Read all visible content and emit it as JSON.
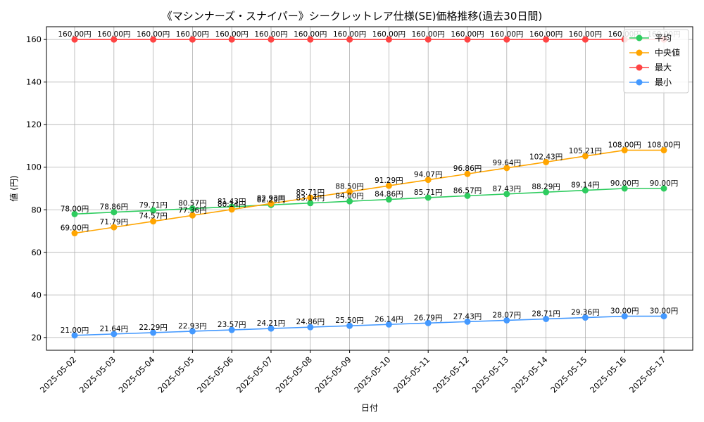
{
  "chart_data": {
    "type": "line",
    "title": "《マシンナーズ・スナイパー》シークレットレア仕様(SE)価格推移(過去30日間)",
    "xlabel": "日付",
    "ylabel": "値 (円)",
    "x": [
      "2025-05-02",
      "2025-05-03",
      "2025-05-04",
      "2025-05-05",
      "2025-05-06",
      "2025-05-07",
      "2025-05-08",
      "2025-05-09",
      "2025-05-10",
      "2025-05-11",
      "2025-05-12",
      "2025-05-13",
      "2025-05-14",
      "2025-05-15",
      "2025-05-16",
      "2025-05-17"
    ],
    "ylim": [
      14,
      166
    ],
    "yticks": [
      20,
      40,
      60,
      80,
      100,
      120,
      140,
      160
    ],
    "grid": true,
    "legend_position": "top-right",
    "value_suffix": "円",
    "series": [
      {
        "name": "平均",
        "color": "#2ecc5f",
        "values": [
          78.0,
          78.86,
          79.71,
          80.57,
          81.43,
          82.29,
          83.14,
          84.0,
          84.86,
          85.71,
          86.57,
          87.43,
          88.29,
          89.14,
          90.0,
          90.0
        ]
      },
      {
        "name": "中央値",
        "color": "#ffa500",
        "values": [
          69.0,
          71.79,
          74.57,
          77.36,
          80.14,
          82.93,
          85.71,
          88.5,
          91.29,
          94.07,
          96.86,
          99.64,
          102.43,
          105.21,
          108.0,
          108.0
        ]
      },
      {
        "name": "最大",
        "color": "#ff4444",
        "values": [
          160.0,
          160.0,
          160.0,
          160.0,
          160.0,
          160.0,
          160.0,
          160.0,
          160.0,
          160.0,
          160.0,
          160.0,
          160.0,
          160.0,
          160.0,
          160.0
        ]
      },
      {
        "name": "最小",
        "color": "#4499ff",
        "values": [
          21.0,
          21.64,
          22.29,
          22.93,
          23.57,
          24.21,
          24.86,
          25.5,
          26.14,
          26.79,
          27.43,
          28.07,
          28.71,
          29.36,
          30.0,
          30.0
        ]
      }
    ]
  }
}
